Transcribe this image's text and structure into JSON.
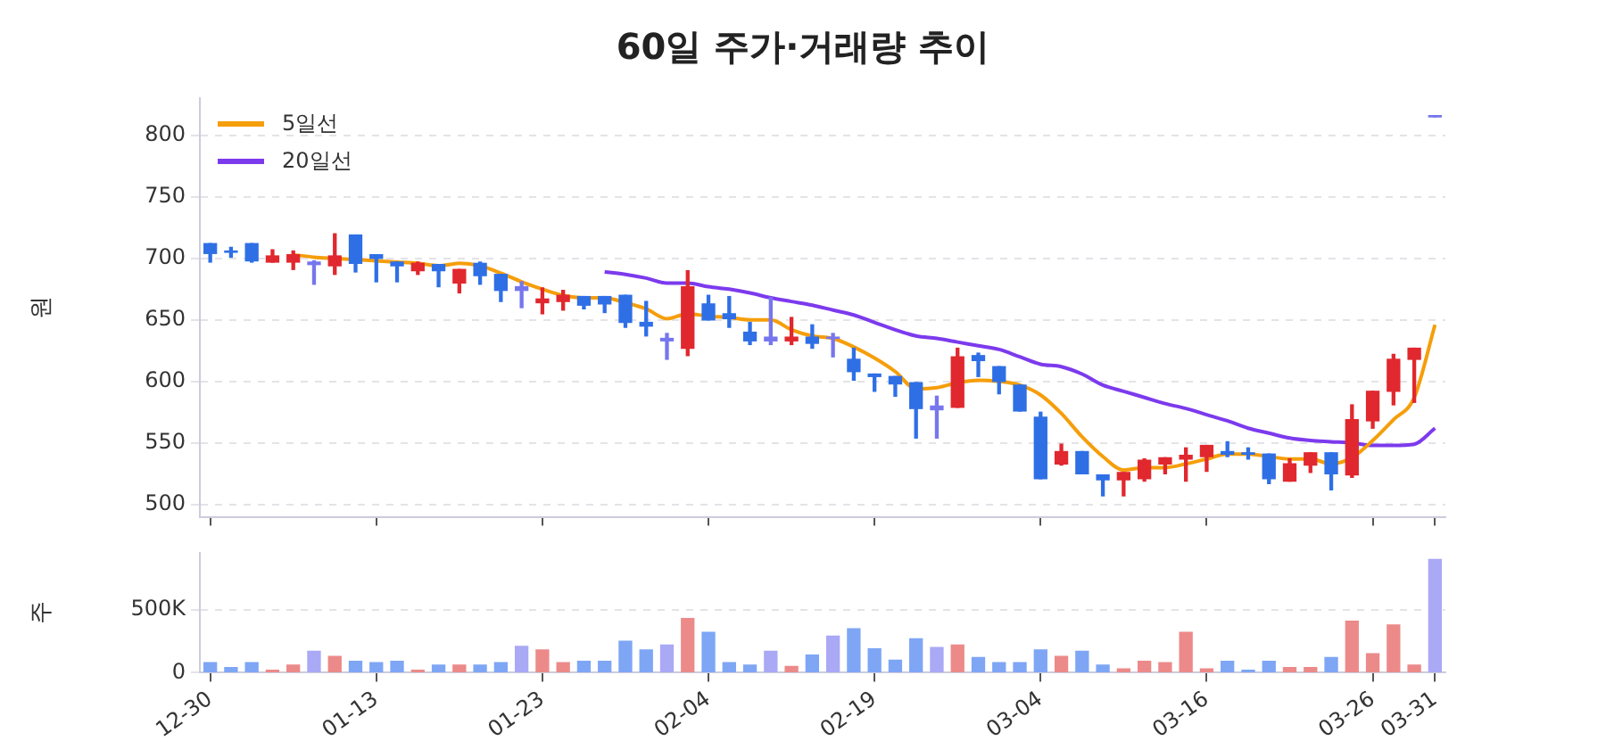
{
  "chart_data": [
    {
      "type": "candlestick",
      "title": "60일 주가·거래량 추이",
      "ylabel": "원",
      "categories": [
        null,
        null,
        null,
        null,
        null,
        null,
        null,
        null,
        null,
        null,
        null,
        null,
        null,
        null,
        null,
        null,
        null,
        null,
        null,
        null,
        null,
        null,
        null,
        null,
        null,
        null,
        null,
        null,
        null,
        null,
        null,
        null,
        null,
        null,
        null,
        null,
        null,
        null,
        null,
        null,
        null,
        null,
        null,
        null,
        null,
        null,
        null,
        null,
        null,
        null,
        null,
        null,
        null,
        null,
        null,
        null,
        null,
        null,
        null,
        null
      ],
      "ylim": [
        490,
        830
      ],
      "yticks": [
        500,
        550,
        600,
        650,
        700,
        750,
        800
      ],
      "grid": "y",
      "legend": "top left",
      "tick_labels": "y",
      "series": [
        {
          "type": "candlestick",
          "ohlc": [
            [
              712,
              712,
              697,
              704
            ],
            [
              706,
              709,
              701,
              705
            ],
            [
              712,
              712,
              697,
              698
            ],
            [
              697,
              707,
              697,
              702
            ],
            [
              697,
              706,
              691,
              703
            ],
            [
              697,
              698,
              679,
              695
            ],
            [
              694,
              720,
              687,
              702
            ],
            [
              719,
              719,
              689,
              696
            ],
            [
              703,
              703,
              681,
              700
            ],
            [
              697,
              697,
              681,
              694
            ],
            [
              690,
              697,
              687,
              696
            ],
            [
              695,
              695,
              677,
              690
            ],
            [
              680,
              691,
              672,
              691
            ],
            [
              696,
              697,
              679,
              686
            ],
            [
              687,
              687,
              665,
              674
            ],
            [
              677,
              681,
              660,
              674
            ],
            [
              664,
              676,
              655,
              667
            ],
            [
              665,
              674,
              658,
              670
            ],
            [
              669,
              669,
              659,
              662
            ],
            [
              669,
              669,
              656,
              663
            ],
            [
              670,
              670,
              644,
              648
            ],
            [
              648,
              665,
              637,
              645
            ],
            [
              635,
              639,
              618,
              633
            ],
            [
              627,
              690,
              621,
              677
            ],
            [
              663,
              670,
              650,
              650
            ],
            [
              655,
              669,
              644,
              651
            ],
            [
              640,
              648,
              630,
              633
            ],
            [
              636,
              668,
              630,
              633
            ],
            [
              633,
              652,
              630,
              636
            ],
            [
              636,
              646,
              627,
              631
            ],
            [
              636,
              639,
              620,
              635
            ],
            [
              618,
              627,
              601,
              608
            ],
            [
              606,
              606,
              592,
              604
            ],
            [
              604,
              604,
              588,
              598
            ],
            [
              599,
              599,
              554,
              578
            ],
            [
              580,
              588,
              554,
              577
            ],
            [
              579,
              627,
              579,
              620
            ],
            [
              621,
              623,
              604,
              617
            ],
            [
              612,
              612,
              590,
              600
            ],
            [
              597,
              597,
              576,
              576
            ],
            [
              571,
              575,
              521,
              521
            ],
            [
              533,
              549,
              532,
              543
            ],
            [
              543,
              543,
              525,
              525
            ],
            [
              524,
              524,
              507,
              520
            ],
            [
              520,
              526,
              507,
              526
            ],
            [
              521,
              537,
              519,
              536
            ],
            [
              533,
              538,
              525,
              538
            ],
            [
              537,
              546,
              519,
              540
            ],
            [
              539,
              548,
              527,
              548
            ],
            [
              543,
              551,
              539,
              541
            ],
            [
              542,
              546,
              537,
              541
            ],
            [
              541,
              541,
              517,
              521
            ],
            [
              519,
              537,
              519,
              533
            ],
            [
              532,
              542,
              526,
              542
            ],
            [
              542,
              542,
              512,
              525
            ],
            [
              524,
              581,
              522,
              569
            ],
            [
              568,
              592,
              562,
              592
            ],
            [
              592,
              622,
              581,
              618
            ],
            [
              618,
              627,
              583,
              627
            ],
            [
              816,
              816,
              815,
              815
            ]
          ],
          "colors": [
            "#2f6fe6",
            "#2f6fe6",
            "#2f6fe6",
            "#e0282e",
            "#e0282e",
            "#7676ee",
            "#e0282e",
            "#2f6fe6",
            "#2f6fe6",
            "#2f6fe6",
            "#e0282e",
            "#2f6fe6",
            "#e0282e",
            "#2f6fe6",
            "#2f6fe6",
            "#7676ee",
            "#e0282e",
            "#e0282e",
            "#2f6fe6",
            "#2f6fe6",
            "#2f6fe6",
            "#2f6fe6",
            "#7676ee",
            "#e0282e",
            "#2f6fe6",
            "#2f6fe6",
            "#2f6fe6",
            "#7676ee",
            "#e0282e",
            "#2f6fe6",
            "#7676ee",
            "#2f6fe6",
            "#2f6fe6",
            "#2f6fe6",
            "#2f6fe6",
            "#7676ee",
            "#e0282e",
            "#2f6fe6",
            "#2f6fe6",
            "#2f6fe6",
            "#2f6fe6",
            "#e0282e",
            "#2f6fe6",
            "#2f6fe6",
            "#e0282e",
            "#e0282e",
            "#e0282e",
            "#e0282e",
            "#e0282e",
            "#2f6fe6",
            "#2f6fe6",
            "#2f6fe6",
            "#e0282e",
            "#e0282e",
            "#2f6fe6",
            "#e0282e",
            "#e0282e",
            "#e0282e",
            "#e0282e",
            "#7676ee"
          ]
        },
        {
          "type": "line",
          "name": "5일선",
          "color": "#f59e0b",
          "values": [
            null,
            null,
            null,
            null,
            703,
            701,
            700,
            699,
            698,
            697,
            696,
            694,
            696,
            694,
            688,
            681,
            675,
            670,
            668,
            668,
            664,
            659,
            651,
            655,
            653,
            652,
            650,
            650,
            642,
            637,
            635,
            628,
            619,
            608,
            594,
            595,
            599,
            601,
            600,
            597,
            589,
            574,
            555,
            539,
            528,
            530,
            530,
            533,
            537,
            541,
            541,
            539,
            537,
            537,
            533,
            538,
            552,
            569,
            587,
            646
          ]
        },
        {
          "type": "line",
          "name": "20일선",
          "color": "#7c3aed",
          "values": [
            null,
            null,
            null,
            null,
            null,
            null,
            null,
            null,
            null,
            null,
            null,
            null,
            null,
            null,
            null,
            null,
            null,
            null,
            null,
            689,
            687,
            684,
            680,
            680,
            677,
            675,
            672,
            668,
            665,
            662,
            658,
            654,
            648,
            642,
            637,
            635,
            632,
            629,
            626,
            620,
            614,
            612,
            606,
            597,
            592,
            587,
            582,
            578,
            573,
            568,
            562,
            558,
            554,
            552,
            551,
            550,
            548,
            548,
            549,
            562
          ]
        }
      ]
    },
    {
      "type": "bar",
      "ylabel": "주",
      "categories": [
        "12-30",
        null,
        null,
        null,
        null,
        null,
        null,
        null,
        "01-13",
        null,
        null,
        null,
        null,
        null,
        null,
        null,
        "01-23",
        null,
        null,
        null,
        null,
        null,
        null,
        null,
        "02-04",
        null,
        null,
        null,
        null,
        null,
        null,
        null,
        "02-19",
        null,
        null,
        null,
        null,
        null,
        null,
        null,
        "03-04",
        null,
        null,
        null,
        null,
        null,
        null,
        null,
        "03-16",
        null,
        null,
        null,
        null,
        null,
        null,
        null,
        "03-26",
        null,
        null,
        "03-31"
      ],
      "ylim": [
        0,
        950000
      ],
      "yticks": [
        0,
        {
          "value": 500000,
          "label": "500K"
        }
      ],
      "grid": "y",
      "values": [
        80000,
        40000,
        80000,
        20000,
        60000,
        170000,
        130000,
        90000,
        80000,
        90000,
        20000,
        60000,
        60000,
        60000,
        80000,
        210000,
        180000,
        80000,
        90000,
        90000,
        250000,
        180000,
        220000,
        430000,
        320000,
        80000,
        60000,
        170000,
        50000,
        140000,
        290000,
        350000,
        190000,
        100000,
        270000,
        200000,
        220000,
        120000,
        80000,
        80000,
        180000,
        130000,
        170000,
        60000,
        30000,
        90000,
        80000,
        320000,
        30000,
        90000,
        20000,
        90000,
        40000,
        40000,
        120000,
        410000,
        150000,
        380000,
        60000,
        900000
      ],
      "colors": [
        "#7ea6f5",
        "#7ea6f5",
        "#7ea6f5",
        "#ec8a8a",
        "#ec8a8a",
        "#a9a9f5",
        "#ec8a8a",
        "#7ea6f5",
        "#7ea6f5",
        "#7ea6f5",
        "#ec8a8a",
        "#7ea6f5",
        "#ec8a8a",
        "#7ea6f5",
        "#7ea6f5",
        "#a9a9f5",
        "#ec8a8a",
        "#ec8a8a",
        "#7ea6f5",
        "#7ea6f5",
        "#7ea6f5",
        "#7ea6f5",
        "#a9a9f5",
        "#ec8a8a",
        "#7ea6f5",
        "#7ea6f5",
        "#7ea6f5",
        "#a9a9f5",
        "#ec8a8a",
        "#7ea6f5",
        "#a9a9f5",
        "#7ea6f5",
        "#7ea6f5",
        "#7ea6f5",
        "#7ea6f5",
        "#a9a9f5",
        "#ec8a8a",
        "#7ea6f5",
        "#7ea6f5",
        "#7ea6f5",
        "#7ea6f5",
        "#ec8a8a",
        "#7ea6f5",
        "#7ea6f5",
        "#ec8a8a",
        "#ec8a8a",
        "#ec8a8a",
        "#ec8a8a",
        "#ec8a8a",
        "#7ea6f5",
        "#7ea6f5",
        "#7ea6f5",
        "#ec8a8a",
        "#ec8a8a",
        "#7ea6f5",
        "#ec8a8a",
        "#ec8a8a",
        "#ec8a8a",
        "#ec8a8a",
        "#a9a9f5"
      ]
    }
  ]
}
